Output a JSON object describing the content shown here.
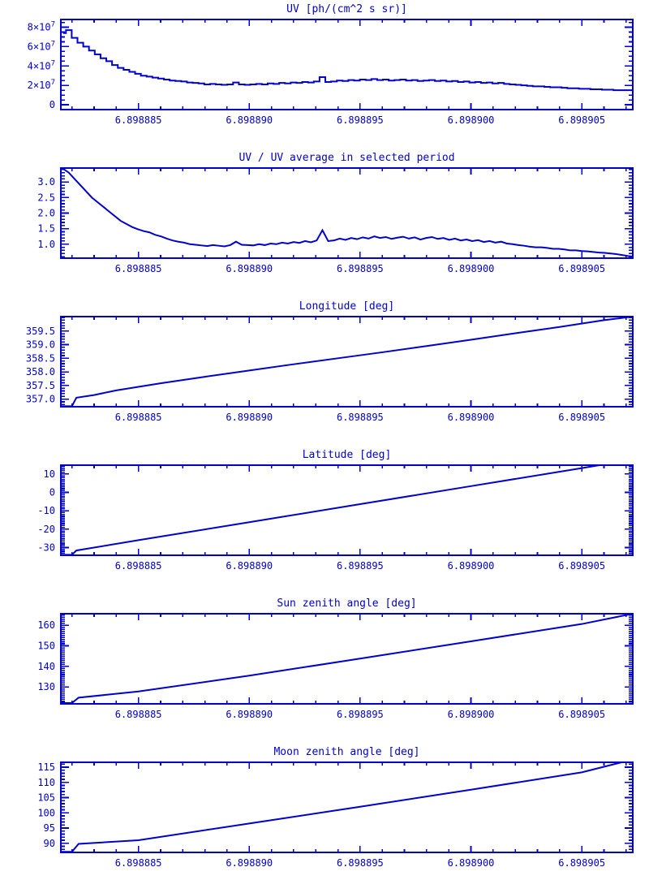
{
  "page": {
    "background": "#ffffff",
    "accent": "#0000cd"
  },
  "chart_data": [
    {
      "id": "uv",
      "type": "step",
      "title": "UV [ph/(cm^2 s sr)]",
      "x_range": [
        6.8988815,
        6.8989073
      ],
      "x_ticks": [
        {
          "v": 6.898885,
          "label": "6.898885"
        },
        {
          "v": 6.89889,
          "label": "6.898890"
        },
        {
          "v": 6.898895,
          "label": "6.898895"
        },
        {
          "v": 6.8989,
          "label": "6.898900"
        },
        {
          "v": 6.898905,
          "label": "6.898905"
        }
      ],
      "x_minor_step": 1e-06,
      "y_unit": "1e7 ph/(cm^2 s sr)",
      "y_range": [
        -0.5,
        8.8
      ],
      "y_ticks": [
        {
          "v": 0,
          "label": "0"
        },
        {
          "v": 2,
          "label": "2×10^7"
        },
        {
          "v": 4,
          "label": "4×10^7"
        },
        {
          "v": 6,
          "label": "6×10^7"
        },
        {
          "v": 8,
          "label": "8×10^7"
        }
      ],
      "y_minor_step": 0.5,
      "series": {
        "x0": 6.8988816,
        "dx": 2.6e-07,
        "y": [
          7.4,
          7.7,
          6.9,
          6.4,
          6.0,
          5.6,
          5.2,
          4.8,
          4.5,
          4.1,
          3.8,
          3.6,
          3.4,
          3.2,
          3.0,
          2.9,
          2.8,
          2.7,
          2.6,
          2.5,
          2.45,
          2.4,
          2.3,
          2.25,
          2.2,
          2.1,
          2.15,
          2.1,
          2.05,
          2.1,
          2.3,
          2.1,
          2.05,
          2.1,
          2.15,
          2.1,
          2.2,
          2.15,
          2.25,
          2.2,
          2.3,
          2.25,
          2.35,
          2.3,
          2.4,
          2.85,
          2.35,
          2.4,
          2.5,
          2.45,
          2.55,
          2.5,
          2.6,
          2.55,
          2.65,
          2.55,
          2.6,
          2.5,
          2.55,
          2.6,
          2.5,
          2.55,
          2.45,
          2.5,
          2.55,
          2.45,
          2.5,
          2.4,
          2.45,
          2.35,
          2.4,
          2.3,
          2.35,
          2.25,
          2.3,
          2.2,
          2.25,
          2.15,
          2.1,
          2.05,
          2.0,
          1.95,
          1.9,
          1.9,
          1.85,
          1.8,
          1.8,
          1.75,
          1.7,
          1.7,
          1.65,
          1.65,
          1.6,
          1.6,
          1.55,
          1.55,
          1.5,
          1.5,
          1.5,
          1.5
        ]
      }
    },
    {
      "id": "uv-ratio",
      "type": "line",
      "title": "UV / UV average in selected period",
      "x_range": [
        6.8988815,
        6.8989073
      ],
      "x_ticks": [
        {
          "v": 6.898885,
          "label": "6.898885"
        },
        {
          "v": 6.89889,
          "label": "6.898890"
        },
        {
          "v": 6.898895,
          "label": "6.898895"
        },
        {
          "v": 6.8989,
          "label": "6.898900"
        },
        {
          "v": 6.898905,
          "label": "6.898905"
        }
      ],
      "x_minor_step": 1e-06,
      "y_range": [
        0.55,
        3.45
      ],
      "y_ticks": [
        {
          "v": 1.0,
          "label": "1.0"
        },
        {
          "v": 1.5,
          "label": "1.5"
        },
        {
          "v": 2.0,
          "label": "2.0"
        },
        {
          "v": 2.5,
          "label": "2.5"
        },
        {
          "v": 3.0,
          "label": "3.0"
        }
      ],
      "y_minor_step": 0.1,
      "series": {
        "x0": 6.8988816,
        "dx": 2.6e-07,
        "y": [
          3.43,
          3.3,
          3.1,
          2.9,
          2.7,
          2.5,
          2.35,
          2.2,
          2.05,
          1.9,
          1.75,
          1.65,
          1.55,
          1.48,
          1.42,
          1.38,
          1.3,
          1.25,
          1.18,
          1.12,
          1.08,
          1.05,
          1.0,
          0.98,
          0.96,
          0.94,
          0.97,
          0.95,
          0.93,
          0.97,
          1.08,
          0.98,
          0.97,
          0.96,
          1.0,
          0.97,
          1.02,
          1.0,
          1.05,
          1.02,
          1.07,
          1.04,
          1.1,
          1.06,
          1.12,
          1.45,
          1.1,
          1.12,
          1.18,
          1.14,
          1.2,
          1.16,
          1.22,
          1.18,
          1.25,
          1.2,
          1.23,
          1.17,
          1.21,
          1.24,
          1.18,
          1.22,
          1.15,
          1.2,
          1.23,
          1.17,
          1.2,
          1.14,
          1.18,
          1.12,
          1.15,
          1.1,
          1.13,
          1.07,
          1.1,
          1.05,
          1.08,
          1.02,
          1.0,
          0.97,
          0.95,
          0.92,
          0.9,
          0.9,
          0.88,
          0.85,
          0.85,
          0.83,
          0.8,
          0.8,
          0.78,
          0.77,
          0.75,
          0.73,
          0.72,
          0.7,
          0.68,
          0.65,
          0.62,
          0.6
        ]
      }
    },
    {
      "id": "longitude",
      "type": "line",
      "title": "Longitude [deg]",
      "x_range": [
        6.8988815,
        6.8989073
      ],
      "x_ticks": [
        {
          "v": 6.898885,
          "label": "6.898885"
        },
        {
          "v": 6.89889,
          "label": "6.898890"
        },
        {
          "v": 6.898895,
          "label": "6.898895"
        },
        {
          "v": 6.8989,
          "label": "6.898900"
        },
        {
          "v": 6.898905,
          "label": "6.898905"
        }
      ],
      "x_minor_step": 1e-06,
      "y_range": [
        356.72,
        360.03
      ],
      "y_ticks": [
        {
          "v": 357.0,
          "label": "357.0"
        },
        {
          "v": 357.5,
          "label": "357.5"
        },
        {
          "v": 358.0,
          "label": "358.0"
        },
        {
          "v": 358.5,
          "label": "358.5"
        },
        {
          "v": 359.0,
          "label": "359.0"
        },
        {
          "v": 359.5,
          "label": "359.5"
        }
      ],
      "y_minor_step": 0.1,
      "series": {
        "points": [
          [
            6.8988815,
            356.74
          ],
          [
            6.898882,
            356.74
          ],
          [
            6.8988822,
            357.05
          ],
          [
            6.898883,
            357.15
          ],
          [
            6.898884,
            357.32
          ],
          [
            6.898885,
            357.45
          ],
          [
            6.898886,
            357.58
          ],
          [
            6.898888,
            357.82
          ],
          [
            6.89889,
            358.05
          ],
          [
            6.898892,
            358.28
          ],
          [
            6.898894,
            358.5
          ],
          [
            6.898896,
            358.72
          ],
          [
            6.898898,
            358.95
          ],
          [
            6.8989,
            359.18
          ],
          [
            6.898902,
            359.42
          ],
          [
            6.898904,
            359.65
          ],
          [
            6.898906,
            359.9
          ],
          [
            6.8989073,
            360.03
          ]
        ]
      }
    },
    {
      "id": "latitude",
      "type": "line",
      "title": "Latitude [deg]",
      "x_range": [
        6.8988815,
        6.8989073
      ],
      "x_ticks": [
        {
          "v": 6.898885,
          "label": "6.898885"
        },
        {
          "v": 6.89889,
          "label": "6.898890"
        },
        {
          "v": 6.898895,
          "label": "6.898895"
        },
        {
          "v": 6.8989,
          "label": "6.898900"
        },
        {
          "v": 6.898905,
          "label": "6.898905"
        }
      ],
      "x_minor_step": 1e-06,
      "y_range": [
        -34.2,
        14.8
      ],
      "y_ticks": [
        {
          "v": -30,
          "label": "-30"
        },
        {
          "v": -20,
          "label": "-20"
        },
        {
          "v": -10,
          "label": "-10"
        },
        {
          "v": 0,
          "label": "0"
        },
        {
          "v": 10,
          "label": "10"
        }
      ],
      "y_minor_step": 1,
      "series": {
        "points": [
          [
            6.8988815,
            -33.9
          ],
          [
            6.898882,
            -33.9
          ],
          [
            6.8988822,
            -31.6
          ],
          [
            6.898885,
            -26.0
          ],
          [
            6.89889,
            -16.2
          ],
          [
            6.898895,
            -6.4
          ],
          [
            6.8989,
            3.4
          ],
          [
            6.898905,
            13.2
          ],
          [
            6.8989058,
            14.8
          ],
          [
            6.8989073,
            14.8
          ]
        ]
      }
    },
    {
      "id": "sun-zenith-angle",
      "type": "line",
      "title": "Sun zenith angle [deg]",
      "x_range": [
        6.8988815,
        6.8989073
      ],
      "x_ticks": [
        {
          "v": 6.898885,
          "label": "6.898885"
        },
        {
          "v": 6.89889,
          "label": "6.898890"
        },
        {
          "v": 6.898895,
          "label": "6.898895"
        },
        {
          "v": 6.8989,
          "label": "6.898900"
        },
        {
          "v": 6.898905,
          "label": "6.898905"
        }
      ],
      "x_minor_step": 1e-06,
      "y_range": [
        121.8,
        165.6
      ],
      "y_ticks": [
        {
          "v": 130,
          "label": "130"
        },
        {
          "v": 140,
          "label": "140"
        },
        {
          "v": 150,
          "label": "150"
        },
        {
          "v": 160,
          "label": "160"
        }
      ],
      "y_minor_step": 1,
      "series": {
        "points": [
          [
            6.8988815,
            122.2
          ],
          [
            6.898882,
            122.2
          ],
          [
            6.8988823,
            124.8
          ],
          [
            6.898885,
            127.8
          ],
          [
            6.89889,
            135.5
          ],
          [
            6.898895,
            143.8
          ],
          [
            6.8989,
            152.2
          ],
          [
            6.898905,
            160.6
          ],
          [
            6.8989073,
            165.6
          ]
        ]
      }
    },
    {
      "id": "moon-zenith-angle",
      "type": "line",
      "title": "Moon zenith angle [deg]",
      "x_range": [
        6.8988815,
        6.8989073
      ],
      "x_ticks": [
        {
          "v": 6.898885,
          "label": "6.898885"
        },
        {
          "v": 6.89889,
          "label": "6.898890"
        },
        {
          "v": 6.898895,
          "label": "6.898895"
        },
        {
          "v": 6.8989,
          "label": "6.898900"
        },
        {
          "v": 6.898905,
          "label": "6.898905"
        }
      ],
      "x_minor_step": 1e-06,
      "y_range": [
        87.0,
        116.6
      ],
      "y_ticks": [
        {
          "v": 90,
          "label": "90"
        },
        {
          "v": 95,
          "label": "95"
        },
        {
          "v": 100,
          "label": "100"
        },
        {
          "v": 105,
          "label": "105"
        },
        {
          "v": 110,
          "label": "110"
        },
        {
          "v": 115,
          "label": "115"
        }
      ],
      "y_minor_step": 1,
      "series": {
        "points": [
          [
            6.8988815,
            87.2
          ],
          [
            6.898882,
            87.2
          ],
          [
            6.8988823,
            89.8
          ],
          [
            6.898885,
            91.0
          ],
          [
            6.89889,
            96.5
          ],
          [
            6.898895,
            102.0
          ],
          [
            6.8989,
            107.6
          ],
          [
            6.898905,
            113.3
          ],
          [
            6.8989068,
            116.6
          ],
          [
            6.8989073,
            116.6
          ]
        ]
      }
    }
  ]
}
